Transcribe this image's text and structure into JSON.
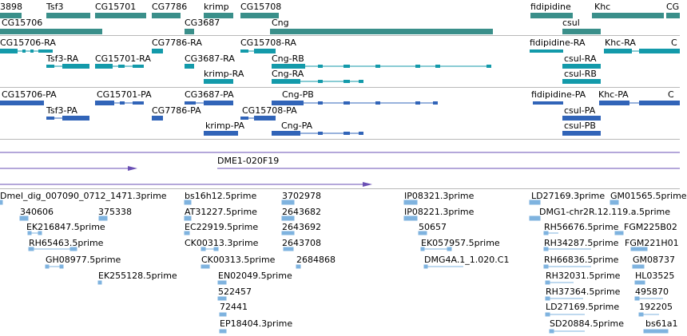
{
  "tracks": {
    "genes": {
      "colors": {
        "fill": "#3a8f8a"
      },
      "labels": [
        "3898",
        "Tsf3",
        "CG15701",
        "CG7786",
        "krimp",
        "CG15708",
        "fidipidine",
        "Khc",
        "CG",
        "CG15706",
        "CG3687",
        "Cng",
        "csul"
      ]
    },
    "transcripts": {
      "colors": {
        "fill": "#139aaa"
      },
      "labels": [
        "CG15706-RA",
        "CG7786-RA",
        "CG15708-RA",
        "fidipidine-RA",
        "Khc-RA",
        "C",
        "Tsf3-RA",
        "CG15701-RA",
        "CG3687-RA",
        "Cng-RB",
        "csul-RA",
        "krimp-RA",
        "Cng-RA",
        "csul-RB"
      ]
    },
    "proteins": {
      "colors": {
        "fill": "#3164b8"
      },
      "labels": [
        "CG15706-PA",
        "CG15701-PA",
        "CG3687-PA",
        "Cng-PB",
        "fidipidine-PA",
        "Khc-PA",
        "C",
        "Tsf3-PA",
        "CG7786-PA",
        "CG15708-PA",
        "csul-PA",
        "krimp-PA",
        "Cng-PA",
        "csul-PB"
      ]
    },
    "clones": {
      "colors": {
        "line": "#6a4fb4"
      },
      "labels": [
        "DME1-020F19"
      ]
    },
    "ests": {
      "colors": {
        "fill": "#7fb3df"
      },
      "labels": [
        "Dmel_dig_007090_0712_1471.3prime",
        "bs16h12.5prime",
        "3702978",
        "IP08321.3prime",
        "LD27169.3prime",
        "GM01565.5prime",
        "340606",
        "375338",
        "AT31227.5prime",
        "2643682",
        "IP08221.3prime",
        "DMG1-chr2R.12.119.a.5prime",
        "EK216847.5prime",
        "EC22919.5prime",
        "2643692",
        "50657",
        "RH56676.5prime",
        "FGM225B02",
        "RH65463.5prime",
        "CK00313.3prime",
        "2643708",
        "EK057957.5prime",
        "RH34287.5prime",
        "FGM221H01",
        "GH08977.5prime",
        "CK00313.5prime",
        "2684868",
        "DMG4A.1_1.020.C1",
        "RH66836.5prime",
        "GM08737",
        "EK255128.5prime",
        "EN02049.5prime",
        "RH32031.5prime",
        "HL03525",
        "522457",
        "RH37364.5prime",
        "495870",
        "72441",
        "LD27169.5prime",
        "192205",
        "EP18404.3prime",
        "SD20884.5prime",
        "bs61a1"
      ]
    }
  }
}
